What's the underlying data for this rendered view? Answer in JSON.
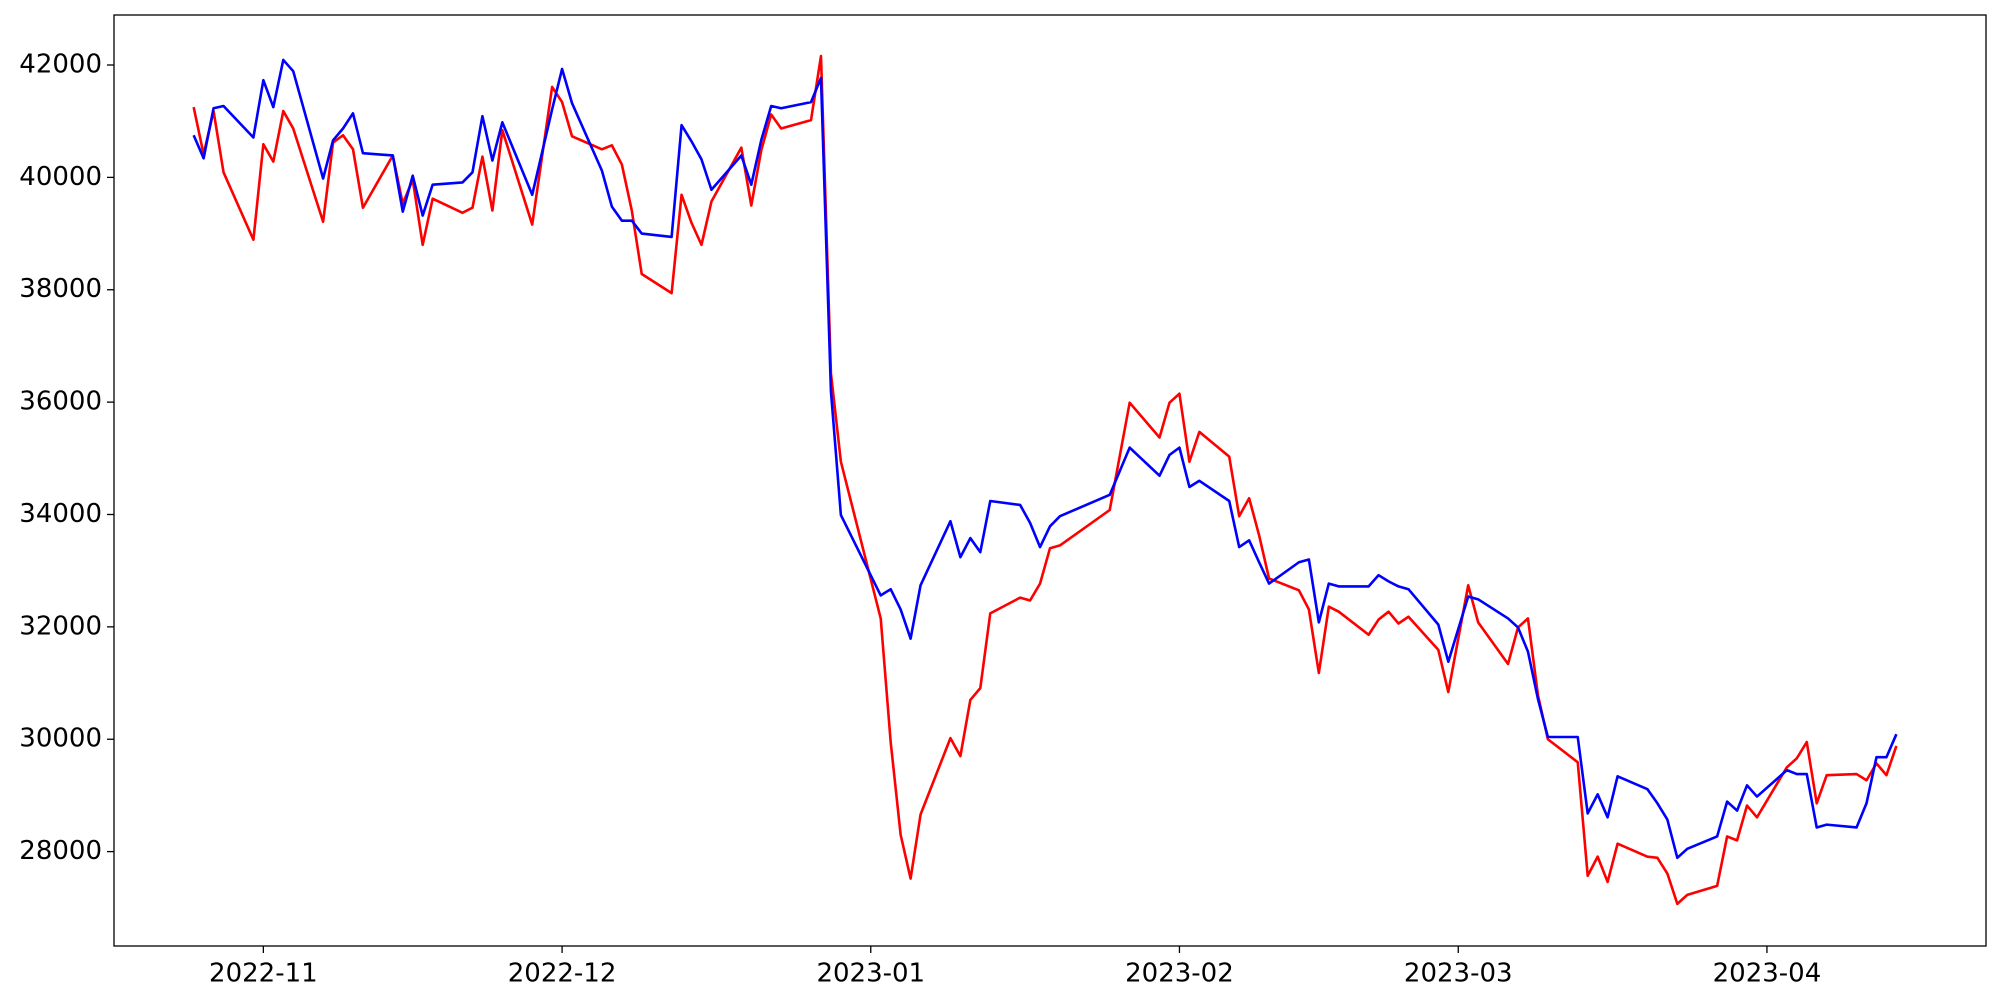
{
  "chart_data": {
    "type": "line",
    "x": [
      "2022-10-25",
      "2022-10-26",
      "2022-10-27",
      "2022-10-28",
      "2022-10-31",
      "2022-11-01",
      "2022-11-02",
      "2022-11-03",
      "2022-11-04",
      "2022-11-07",
      "2022-11-08",
      "2022-11-09",
      "2022-11-10",
      "2022-11-11",
      "2022-11-14",
      "2022-11-15",
      "2022-11-16",
      "2022-11-17",
      "2022-11-18",
      "2022-11-21",
      "2022-11-22",
      "2022-11-23",
      "2022-11-24",
      "2022-11-25",
      "2022-11-28",
      "2022-11-30",
      "2022-12-01",
      "2022-12-02",
      "2022-12-05",
      "2022-12-06",
      "2022-12-07",
      "2022-12-08",
      "2022-12-09",
      "2022-12-12",
      "2022-12-13",
      "2022-12-14",
      "2022-12-15",
      "2022-12-16",
      "2022-12-19",
      "2022-12-20",
      "2022-12-21",
      "2022-12-22",
      "2022-12-23",
      "2022-12-26",
      "2022-12-27",
      "2022-12-28",
      "2022-12-29",
      "2023-01-02",
      "2023-01-03",
      "2023-01-04",
      "2023-01-05",
      "2023-01-06",
      "2023-01-09",
      "2023-01-10",
      "2023-01-11",
      "2023-01-12",
      "2023-01-13",
      "2023-01-16",
      "2023-01-17",
      "2023-01-18",
      "2023-01-19",
      "2023-01-20",
      "2023-01-25",
      "2023-01-27",
      "2023-01-30",
      "2023-01-31",
      "2023-02-01",
      "2023-02-02",
      "2023-02-03",
      "2023-02-06",
      "2023-02-07",
      "2023-02-08",
      "2023-02-09",
      "2023-02-10",
      "2023-02-13",
      "2023-02-14",
      "2023-02-15",
      "2023-02-16",
      "2023-02-17",
      "2023-02-20",
      "2023-02-21",
      "2023-02-22",
      "2023-02-23",
      "2023-02-24",
      "2023-02-27",
      "2023-02-28",
      "2023-03-02",
      "2023-03-03",
      "2023-03-06",
      "2023-03-07",
      "2023-03-08",
      "2023-03-09",
      "2023-03-10",
      "2023-03-13",
      "2023-03-14",
      "2023-03-15",
      "2023-03-16",
      "2023-03-17",
      "2023-03-20",
      "2023-03-21",
      "2023-03-22",
      "2023-03-23",
      "2023-03-24",
      "2023-03-27",
      "2023-03-28",
      "2023-03-29",
      "2023-03-30",
      "2023-03-31",
      "2023-04-03",
      "2023-04-04",
      "2023-04-05",
      "2023-04-06",
      "2023-04-07",
      "2023-04-10",
      "2023-04-11",
      "2023-04-12",
      "2023-04-13",
      "2023-04-14"
    ],
    "series": [
      {
        "color": "#ff0000",
        "values": [
          41250,
          40410,
          41180,
          40090,
          38890,
          40590,
          40280,
          41180,
          40870,
          39210,
          40620,
          40750,
          40500,
          39460,
          40390,
          39530,
          39960,
          38800,
          39620,
          39370,
          39460,
          40370,
          39410,
          40840,
          39160,
          41610,
          41340,
          40730,
          40500,
          40570,
          40230,
          39410,
          38280,
          37940,
          39690,
          39190,
          38800,
          39570,
          40530,
          39500,
          40480,
          41120,
          40870,
          41020,
          42160,
          36510,
          34940,
          32150,
          29950,
          28300,
          27520,
          28660,
          30020,
          29700,
          30700,
          30910,
          32240,
          32520,
          32470,
          32770,
          33400,
          33450,
          34080,
          35990,
          35370,
          35990,
          36150,
          34940,
          35470,
          35030,
          33970,
          34290,
          33630,
          32860,
          32650,
          32310,
          31180,
          32360,
          32270,
          31860,
          32130,
          32270,
          32060,
          32180,
          31590,
          30840,
          32740,
          32080,
          31340,
          31990,
          32150,
          30790,
          30000,
          29590,
          27570,
          27910,
          27460,
          28140,
          27910,
          27890,
          27610,
          27070,
          27230,
          27390,
          28270,
          28200,
          28820,
          28610,
          29500,
          29660,
          29950,
          28860,
          29360,
          29380,
          29270,
          29570,
          29360,
          29880
        ]
      },
      {
        "color": "#0000ff",
        "values": [
          40750,
          40340,
          41230,
          41270,
          40710,
          41730,
          41250,
          42090,
          41890,
          39980,
          40660,
          40870,
          41140,
          40430,
          40390,
          39390,
          40030,
          39320,
          39870,
          39910,
          40090,
          41090,
          40300,
          40980,
          39690,
          41210,
          41930,
          41320,
          40120,
          39480,
          39230,
          39230,
          39000,
          38940,
          40930,
          40640,
          40320,
          39780,
          40390,
          39870,
          40660,
          41270,
          41230,
          41340,
          41770,
          36190,
          33990,
          32560,
          32670,
          32310,
          31790,
          32740,
          33880,
          33240,
          33580,
          33330,
          34240,
          34170,
          33850,
          33420,
          33790,
          33970,
          34350,
          35190,
          34690,
          35060,
          35190,
          34490,
          34600,
          34240,
          33420,
          33540,
          33150,
          32770,
          33150,
          33200,
          32080,
          32770,
          32720,
          32720,
          32920,
          32810,
          32720,
          32670,
          32040,
          31380,
          32540,
          32490,
          32150,
          31990,
          31560,
          30720,
          30040,
          30040,
          28680,
          29020,
          28610,
          29340,
          29110,
          28860,
          28570,
          27890,
          28050,
          28270,
          28890,
          28730,
          29180,
          28980,
          29450,
          29380,
          29380,
          28430,
          28480,
          28430,
          28860,
          29680,
          29680,
          30090
        ]
      }
    ],
    "xlim": [
      "2022-10-17",
      "2023-04-23"
    ],
    "xticks": [
      {
        "value": "2022-11-01",
        "label": "2022-11"
      },
      {
        "value": "2022-12-01",
        "label": "2022-12"
      },
      {
        "value": "2023-01-01",
        "label": "2023-01"
      },
      {
        "value": "2023-02-01",
        "label": "2023-02"
      },
      {
        "value": "2023-03-01",
        "label": "2023-03"
      },
      {
        "value": "2023-04-01",
        "label": "2023-04"
      }
    ],
    "ylim": [
      26320,
      42890
    ],
    "yticks": [
      28000,
      30000,
      32000,
      34000,
      36000,
      38000,
      40000,
      42000
    ],
    "grid": false
  }
}
